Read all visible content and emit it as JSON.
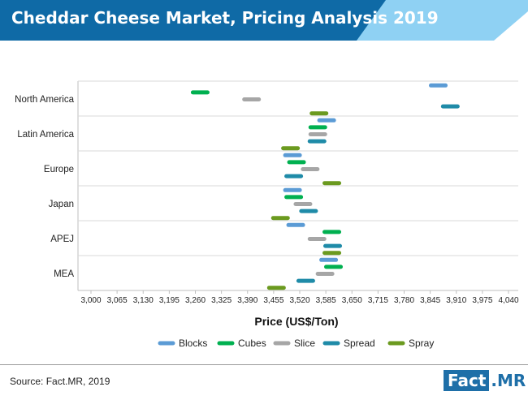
{
  "title": "Cheddar Cheese Market, Pricing Analysis 2019",
  "source": "Source: Fact.MR, 2019",
  "logo": {
    "word": "Fact",
    "dot": ".",
    "suffix": "MR"
  },
  "colors": {
    "header_dark": "#0f6aa6",
    "header_mid": "#2b96d2",
    "header_light": "#8fd1f3"
  },
  "chart_data": {
    "type": "range-dot",
    "title": "Cheddar Cheese Market, Pricing Analysis 2019",
    "xlabel": "Price (US$/Ton)",
    "ylabel": "",
    "xlim": [
      3000,
      4040
    ],
    "xticks": [
      "3,000",
      "3,065",
      "3,130",
      "3,195",
      "3,260",
      "3,325",
      "3,390",
      "3,455",
      "3,520",
      "3,585",
      "3,650",
      "3,715",
      "3,780",
      "3,845",
      "3,910",
      "3,975",
      "4,040"
    ],
    "categories": [
      "North America",
      "Latin America",
      "Europe",
      "Japan",
      "APEJ",
      "MEA"
    ],
    "legend_position": "bottom",
    "grid": "horizontal",
    "series": [
      {
        "name": "Blocks",
        "color": "#5b9bd5",
        "values": [
          3865,
          3587,
          3502,
          3502,
          3510,
          3592
        ]
      },
      {
        "name": "Cubes",
        "color": "#00b050",
        "values": [
          3272,
          3565,
          3512,
          3505,
          3600,
          3604
        ]
      },
      {
        "name": "Slice",
        "color": "#a6a6a6",
        "values": [
          3400,
          3565,
          3546,
          3528,
          3563,
          3583
        ]
      },
      {
        "name": "Spread",
        "color": "#1f8ba8",
        "values": [
          3895,
          3563,
          3505,
          3542,
          3602,
          3535
        ]
      },
      {
        "name": "Spray",
        "color": "#6b9a1f",
        "values": [
          3568,
          3497,
          3600,
          3472,
          3600,
          3462
        ]
      }
    ]
  }
}
